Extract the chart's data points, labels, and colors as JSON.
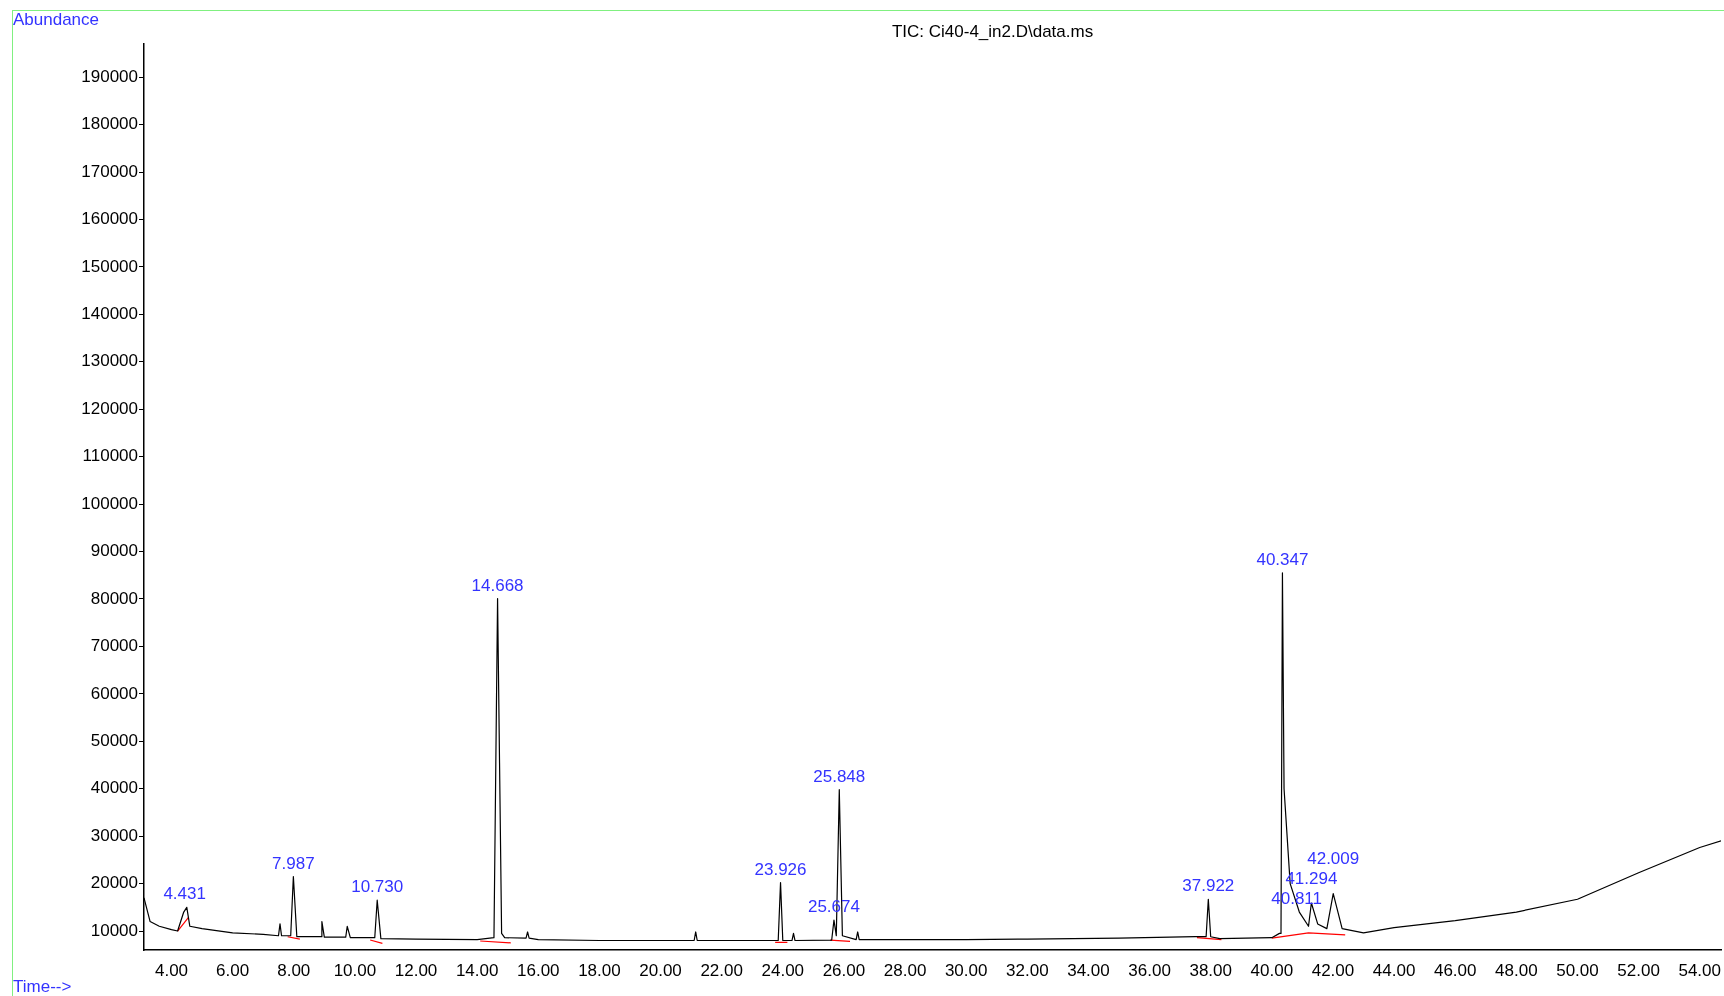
{
  "chart_data": {
    "type": "line",
    "title": "TIC: Ci40-4_in2.D\\data.ms",
    "xlabel": "Time-->",
    "ylabel": "Abundance",
    "marker": "none",
    "xlim": [
      3.1,
      54.7
    ],
    "ylim": [
      6000,
      197000
    ],
    "xticks": [
      {
        "value": 4,
        "label": "4.00"
      },
      {
        "value": 6,
        "label": "6.00"
      },
      {
        "value": 8,
        "label": "8.00"
      },
      {
        "value": 10,
        "label": "10.00"
      },
      {
        "value": 12,
        "label": "12.00"
      },
      {
        "value": 14,
        "label": "14.00"
      },
      {
        "value": 16,
        "label": "16.00"
      },
      {
        "value": 18,
        "label": "18.00"
      },
      {
        "value": 20,
        "label": "20.00"
      },
      {
        "value": 22,
        "label": "22.00"
      },
      {
        "value": 24,
        "label": "24.00"
      },
      {
        "value": 26,
        "label": "26.00"
      },
      {
        "value": 28,
        "label": "28.00"
      },
      {
        "value": 30,
        "label": "30.00"
      },
      {
        "value": 32,
        "label": "32.00"
      },
      {
        "value": 34,
        "label": "34.00"
      },
      {
        "value": 36,
        "label": "36.00"
      },
      {
        "value": 38,
        "label": "38.00"
      },
      {
        "value": 40,
        "label": "40.00"
      },
      {
        "value": 42,
        "label": "42.00"
      },
      {
        "value": 44,
        "label": "44.00"
      },
      {
        "value": 46,
        "label": "46.00"
      },
      {
        "value": 48,
        "label": "48.00"
      },
      {
        "value": 50,
        "label": "50.00"
      },
      {
        "value": 52,
        "label": "52.00"
      },
      {
        "value": 54,
        "label": "54.00"
      }
    ],
    "yticks": [
      10000,
      20000,
      30000,
      40000,
      50000,
      60000,
      70000,
      80000,
      90000,
      100000,
      110000,
      120000,
      130000,
      140000,
      150000,
      160000,
      170000,
      180000,
      190000
    ],
    "series": [
      {
        "color": "#000000",
        "x": [
          3.1,
          3.3,
          3.6,
          4.0,
          4.2,
          4.4,
          4.5,
          4.6,
          5.0,
          6.0,
          7.0,
          7.5,
          7.55,
          7.6,
          7.9,
          7.987,
          8.1,
          8.9,
          8.92,
          9.0,
          9.7,
          9.75,
          9.85,
          10.65,
          10.73,
          10.85,
          12.0,
          14.0,
          14.55,
          14.668,
          14.8,
          14.9,
          15.6,
          15.65,
          15.7,
          16.0,
          18.0,
          20.0,
          21.1,
          21.15,
          21.2,
          23.85,
          23.926,
          24.0,
          24.3,
          24.35,
          24.4,
          25.6,
          25.674,
          25.75,
          25.848,
          25.95,
          26.4,
          26.45,
          26.5,
          28.0,
          30.0,
          32.0,
          35.0,
          37.5,
          37.85,
          37.922,
          38.0,
          38.3,
          40.0,
          40.25,
          40.3,
          40.347,
          40.4,
          40.45,
          40.6,
          40.9,
          41.2,
          41.294,
          41.5,
          41.8,
          42.009,
          42.3,
          43.0,
          44.0,
          46.0,
          48.0,
          50.0,
          52.0,
          54.0,
          54.7
        ],
        "values": [
          17000,
          12000,
          11000,
          10300,
          10000,
          14000,
          15000,
          11000,
          10500,
          9600,
          9300,
          9000,
          11500,
          9000,
          9000,
          21500,
          8800,
          8800,
          12000,
          8700,
          8700,
          11000,
          8600,
          8600,
          16500,
          8400,
          8300,
          8200,
          8600,
          80100,
          9500,
          8600,
          8500,
          9800,
          8500,
          8200,
          8000,
          8000,
          8000,
          9800,
          8000,
          8000,
          20200,
          8000,
          8000,
          9500,
          8000,
          8100,
          12300,
          9000,
          39800,
          9000,
          8200,
          9800,
          8200,
          8200,
          8200,
          8300,
          8500,
          8800,
          8800,
          16700,
          8800,
          8400,
          8600,
          9500,
          9500,
          85500,
          40000,
          35000,
          20000,
          14000,
          11000,
          15900,
          11500,
          10500,
          17900,
          10500,
          9600,
          10700,
          12200,
          14000,
          16700,
          22300,
          27600,
          29000
        ]
      },
      {
        "color": "#ff0000",
        "x": [
          4.2,
          4.55,
          4.6,
          7.8,
          8.2,
          8.3,
          10.5,
          10.9,
          11.0,
          14.1,
          15.1,
          15.2,
          23.75,
          24.15,
          24.2,
          25.55,
          26.2,
          26.3,
          37.55,
          38.35,
          38.4,
          40.0,
          41.2,
          42.4
        ],
        "values": [
          10000,
          12800,
          null,
          8800,
          8300,
          null,
          8100,
          7400,
          null,
          7900,
          7500,
          null,
          7600,
          7600,
          null,
          8100,
          7800,
          null,
          8600,
          8200,
          null,
          8500,
          9600,
          9200
        ]
      }
    ],
    "annotations": [
      {
        "text": "4.431",
        "x": 4.431,
        "y": 15000
      },
      {
        "text": "7.987",
        "x": 7.987,
        "y": 21500
      },
      {
        "text": "10.730",
        "x": 10.73,
        "y": 16500
      },
      {
        "text": "14.668",
        "x": 14.668,
        "y": 80100
      },
      {
        "text": "23.926",
        "x": 23.926,
        "y": 20200
      },
      {
        "text": "25.674",
        "x": 25.674,
        "y": 12300
      },
      {
        "text": "25.848",
        "x": 25.848,
        "y": 39800
      },
      {
        "text": "37.922",
        "x": 37.922,
        "y": 16700
      },
      {
        "text": "40.347",
        "x": 40.347,
        "y": 85500
      },
      {
        "text": "40.811",
        "x": 40.811,
        "y": 14000
      },
      {
        "text": "41.294",
        "x": 41.294,
        "y": 15900
      },
      {
        "text": "42.009",
        "x": 42.009,
        "y": 17900
      }
    ]
  }
}
